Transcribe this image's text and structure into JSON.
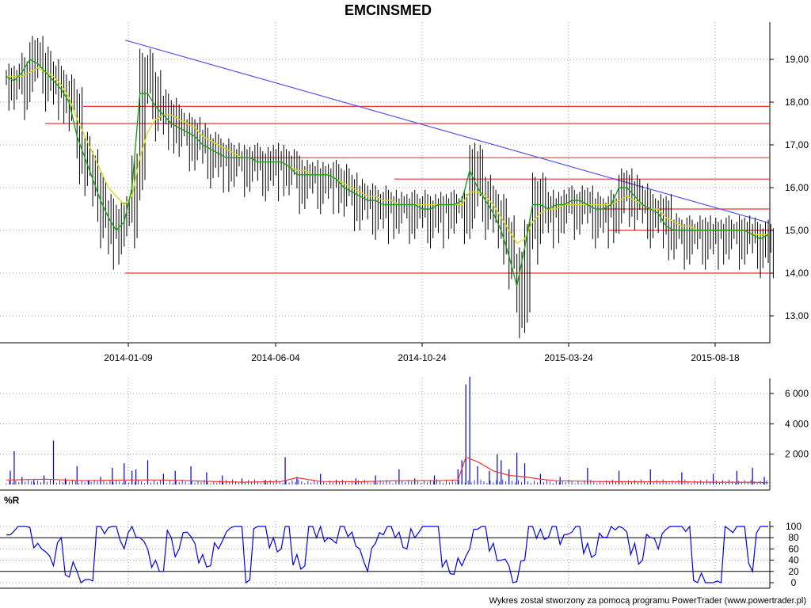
{
  "colors": {
    "background": "#ffffff",
    "price_bars": "#000000",
    "ma_fast": "#1aa01a",
    "ma_slow": "#d8d820",
    "trendline": "#5555ee",
    "levels": "#ee3333",
    "volume_bars": "#0000cc",
    "volume_ma": "#ee3333",
    "wr_line": "#0000ee",
    "grid": "#999999"
  },
  "chart_data": [
    {
      "type": "candlestick",
      "title": "EMCINSMED",
      "x_tick_labels": [
        "2014-01-09",
        "2014-06-04",
        "2014-10-24",
        "2015-03-24",
        "2015-08-18"
      ],
      "y_tick_labels": [
        "13,00",
        "14,00",
        "15,00",
        "16,00",
        "17,00",
        "18,00",
        "19,00"
      ],
      "ylim": [
        12.5,
        19.6
      ],
      "grid": true,
      "series": [
        {
          "name": "close",
          "x": [
            0,
            10,
            20,
            30,
            40,
            50,
            60,
            70,
            80,
            90,
            100,
            110,
            120,
            130,
            140,
            150,
            160,
            170,
            180,
            190,
            200,
            210,
            220,
            230,
            240,
            250,
            260,
            270,
            280,
            290,
            300,
            310,
            320,
            330,
            340,
            350,
            360,
            370,
            380,
            390,
            400,
            410,
            420,
            430,
            440,
            450,
            460,
            470,
            480,
            490,
            500,
            510,
            520,
            530,
            540,
            550,
            560,
            570,
            580,
            590,
            600,
            610,
            620,
            630,
            640,
            650,
            660,
            670,
            680,
            690,
            700,
            710,
            720,
            730,
            740,
            750,
            760,
            770,
            780,
            790,
            800,
            810,
            820,
            830,
            840,
            850,
            860,
            870,
            880,
            890,
            900,
            910,
            920,
            930,
            940,
            950,
            960,
            970
          ],
          "y": [
            18.6,
            18.5,
            18.8,
            19.2,
            19.0,
            18.7,
            18.5,
            18.3,
            18.0,
            17.0,
            16.6,
            16.0,
            15.5,
            15.0,
            15.3,
            15.5,
            16.5,
            18.9,
            18.4,
            18.0,
            17.8,
            17.6,
            17.4,
            17.3,
            17.2,
            17.0,
            16.9,
            16.8,
            16.7,
            16.7,
            16.7,
            16.7,
            16.6,
            16.6,
            16.7,
            16.6,
            16.5,
            16.3,
            16.3,
            16.3,
            16.3,
            16.3,
            16.2,
            16.0,
            15.9,
            15.8,
            15.7,
            15.7,
            15.6,
            15.6,
            15.6,
            15.6,
            15.6,
            15.5,
            15.5,
            15.6,
            15.6,
            15.6,
            15.6,
            16.7,
            16.0,
            15.7,
            15.5,
            15.0,
            14.3,
            13.4,
            15.0,
            16.0,
            15.6,
            15.5,
            15.6,
            15.7,
            15.7,
            15.7,
            15.6,
            15.5,
            15.5,
            15.6,
            16.1,
            16.0,
            15.8,
            15.6,
            15.5,
            15.5,
            15.1,
            15.0,
            15.0,
            15.0,
            15.0,
            15.0,
            15.0,
            15.0,
            15.0,
            15.0,
            15.0,
            14.9,
            14.8,
            14.9
          ]
        }
      ],
      "overlays": {
        "ma_fast": [
          18.6,
          18.5,
          18.7,
          19.0,
          18.9,
          18.7,
          18.5,
          18.3,
          18.0,
          17.2,
          16.7,
          16.2,
          15.7,
          15.3,
          15.0,
          15.2,
          16.0,
          18.2,
          18.2,
          17.9,
          17.7,
          17.5,
          17.4,
          17.3,
          17.2,
          17.0,
          16.9,
          16.8,
          16.7,
          16.7,
          16.7,
          16.7,
          16.6,
          16.6,
          16.6,
          16.6,
          16.5,
          16.3,
          16.3,
          16.3,
          16.3,
          16.3,
          16.2,
          16.0,
          15.9,
          15.8,
          15.7,
          15.7,
          15.6,
          15.6,
          15.6,
          15.6,
          15.6,
          15.5,
          15.5,
          15.6,
          15.6,
          15.6,
          15.7,
          16.4,
          16.0,
          15.7,
          15.4,
          15.0,
          14.4,
          13.7,
          14.6,
          15.6,
          15.6,
          15.5,
          15.6,
          15.6,
          15.7,
          15.7,
          15.6,
          15.5,
          15.5,
          15.6,
          16.0,
          16.0,
          15.8,
          15.6,
          15.5,
          15.4,
          15.1,
          15.0,
          15.0,
          15.0,
          15.0,
          15.0,
          15.0,
          15.0,
          15.0,
          15.0,
          15.0,
          14.9,
          14.8,
          14.9
        ],
        "ma_slow": [
          18.6,
          18.6,
          18.6,
          18.7,
          18.8,
          18.7,
          18.6,
          18.4,
          18.1,
          17.6,
          17.2,
          16.8,
          16.4,
          16.0,
          15.8,
          15.6,
          15.8,
          16.7,
          17.3,
          17.6,
          17.7,
          17.7,
          17.6,
          17.5,
          17.4,
          17.2,
          17.1,
          17.0,
          16.9,
          16.8,
          16.7,
          16.7,
          16.6,
          16.6,
          16.6,
          16.6,
          16.5,
          16.4,
          16.4,
          16.3,
          16.3,
          16.3,
          16.2,
          16.1,
          16.0,
          15.9,
          15.8,
          15.8,
          15.7,
          15.7,
          15.6,
          15.6,
          15.6,
          15.6,
          15.6,
          15.6,
          15.6,
          15.6,
          15.6,
          15.9,
          15.9,
          15.8,
          15.6,
          15.3,
          15.0,
          14.7,
          14.8,
          15.2,
          15.4,
          15.5,
          15.5,
          15.6,
          15.6,
          15.6,
          15.6,
          15.6,
          15.6,
          15.6,
          15.7,
          15.8,
          15.7,
          15.6,
          15.5,
          15.5,
          15.3,
          15.2,
          15.1,
          15.1,
          15.0,
          15.0,
          15.0,
          15.0,
          15.0,
          15.0,
          15.0,
          14.9,
          14.9,
          14.9
        ],
        "trendline": [
          [
            18,
            19.45
          ],
          [
            972,
            15.17
          ]
        ],
        "levels": [
          {
            "y": 17.9,
            "x_start": 105
          },
          {
            "y": 17.5,
            "x_start": 57
          },
          {
            "y": 16.7,
            "x_start": 290
          },
          {
            "y": 16.2,
            "x_start": 498
          },
          {
            "y": 15.5,
            "x_start": 760
          },
          {
            "y": 15.0,
            "x_start": 768
          },
          {
            "y": 14.0,
            "x_start": 158
          }
        ]
      }
    },
    {
      "type": "bar",
      "y_tick_labels": [
        "2 000",
        "4 000",
        "6 000"
      ],
      "ylim": [
        0,
        7200
      ],
      "grid": true,
      "series": [
        {
          "name": "volume",
          "x": [
            5,
            10,
            20,
            35,
            48,
            60,
            75,
            90,
            105,
            120,
            135,
            150,
            160,
            165,
            180,
            200,
            215,
            235,
            255,
            275,
            300,
            330,
            355,
            370,
            400,
            420,
            445,
            470,
            500,
            520,
            545,
            575,
            580,
            585,
            590,
            600,
            615,
            625,
            630,
            640,
            650,
            660,
            680,
            705,
            740,
            780,
            820,
            860,
            900,
            930,
            950,
            965
          ],
          "values": [
            900,
            2200,
            500,
            300,
            600,
            2900,
            400,
            1200,
            300,
            500,
            1100,
            1400,
            900,
            1000,
            1600,
            700,
            900,
            1200,
            800,
            600,
            400,
            300,
            1800,
            500,
            700,
            300,
            400,
            600,
            1000,
            400,
            600,
            1000,
            1600,
            6600,
            7100,
            1200,
            900,
            2000,
            1600,
            1000,
            2100,
            1400,
            700,
            500,
            1100,
            900,
            1000,
            800,
            700,
            900,
            1100,
            500
          ]
        },
        {
          "name": "volume_ma",
          "x": [
            0,
            50,
            100,
            150,
            200,
            250,
            300,
            350,
            370,
            400,
            450,
            500,
            550,
            575,
            585,
            600,
            620,
            640,
            660,
            680,
            700,
            750,
            800,
            850,
            900,
            950,
            970
          ],
          "values": [
            300,
            350,
            250,
            300,
            300,
            220,
            150,
            200,
            450,
            200,
            180,
            250,
            250,
            300,
            1800,
            1500,
            900,
            600,
            500,
            350,
            250,
            200,
            180,
            180,
            150,
            150,
            120
          ]
        }
      ]
    },
    {
      "type": "line",
      "y_tick_labels": [
        "0",
        "20",
        "40",
        "60",
        "80",
        "100"
      ],
      "ylim": [
        0,
        100
      ],
      "grid": true,
      "panel_label": "%R",
      "series": [
        {
          "name": "%R",
          "x": [
            0,
            10,
            20,
            30,
            40,
            50,
            60,
            70,
            80,
            90,
            100,
            110,
            120,
            130,
            140,
            150,
            160,
            170,
            180,
            190,
            200,
            210,
            220,
            230,
            240,
            250,
            260,
            270,
            280,
            290,
            300,
            310,
            320,
            330,
            340,
            350,
            360,
            370,
            380,
            390,
            400,
            410,
            420,
            430,
            440,
            450,
            460,
            470,
            480,
            490,
            500,
            510,
            520,
            530,
            540,
            550,
            560,
            570,
            580,
            590,
            600,
            610,
            620,
            630,
            640,
            650,
            660,
            670,
            680,
            690,
            700,
            710,
            720,
            730,
            740,
            750,
            760,
            770,
            780,
            790,
            800,
            810,
            820,
            830,
            840,
            850,
            860,
            870,
            880,
            890,
            900,
            910,
            920,
            930,
            940,
            950,
            960,
            970
          ],
          "values": [
            85,
            92,
            100,
            98,
            70,
            55,
            30,
            80,
            10,
            20,
            5,
            3,
            100,
            98,
            100,
            60,
            100,
            80,
            60,
            40,
            20,
            80,
            60,
            90,
            70,
            50,
            30,
            60,
            90,
            100,
            100,
            5,
            100,
            100,
            80,
            60,
            100,
            50,
            30,
            100,
            100,
            80,
            70,
            100,
            90,
            60,
            20,
            70,
            85,
            100,
            90,
            60,
            80,
            100,
            100,
            100,
            40,
            15,
            30,
            60,
            95,
            100,
            70,
            40,
            30,
            2,
            40,
            100,
            95,
            80,
            100,
            85,
            90,
            100,
            70,
            50,
            80,
            100,
            100,
            90,
            70,
            40,
            80,
            60,
            95,
            100,
            100,
            100,
            0,
            0,
            0,
            0,
            95,
            100,
            100,
            20,
            100,
            100
          ]
        }
      ]
    }
  ],
  "footer": "Wykres został stworzony za pomocą programu PowerTrader (www.powertrader.pl)"
}
